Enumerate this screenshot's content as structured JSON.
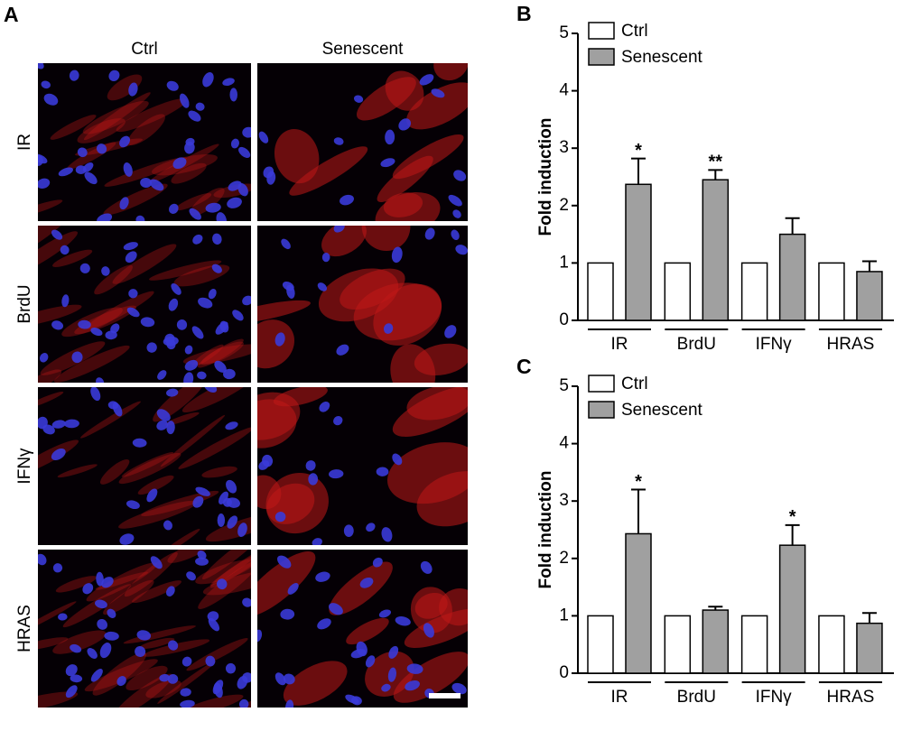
{
  "panel_a": {
    "label": "A",
    "columns": [
      "Ctrl",
      "Senescent"
    ],
    "rows": [
      "IR",
      "BrdU",
      "IFNγ",
      "HRAS"
    ]
  },
  "chart_data": [
    {
      "type": "bar",
      "panel_label": "B",
      "ylabel": "Fold induction",
      "categories": [
        "IR",
        "BrdU",
        "IFNγ",
        "HRAS"
      ],
      "series": [
        {
          "name": "Ctrl",
          "color": "#ffffff",
          "values": [
            1,
            1,
            1,
            1
          ]
        },
        {
          "name": "Senescent",
          "color": "#a0a0a0",
          "values": [
            2.37,
            2.45,
            1.5,
            0.85
          ],
          "errors": [
            0.45,
            0.17,
            0.28,
            0.18
          ],
          "significance": [
            "*",
            "**",
            null,
            null
          ]
        }
      ],
      "ylim": [
        0,
        5
      ],
      "yticks": [
        0,
        1,
        2,
        3,
        4,
        5
      ],
      "legend": "upper-left"
    },
    {
      "type": "bar",
      "panel_label": "C",
      "ylabel": "Fold induction",
      "categories": [
        "IR",
        "BrdU",
        "IFNγ",
        "HRAS"
      ],
      "series": [
        {
          "name": "Ctrl",
          "color": "#ffffff",
          "values": [
            1,
            1,
            1,
            1
          ]
        },
        {
          "name": "Senescent",
          "color": "#a0a0a0",
          "values": [
            2.43,
            1.1,
            2.23,
            0.87
          ],
          "errors": [
            0.77,
            0.06,
            0.35,
            0.18
          ],
          "significance": [
            "*",
            null,
            "*",
            null
          ]
        }
      ],
      "ylim": [
        0,
        5
      ],
      "yticks": [
        0,
        1,
        2,
        3,
        4,
        5
      ],
      "legend": "upper-left"
    }
  ]
}
